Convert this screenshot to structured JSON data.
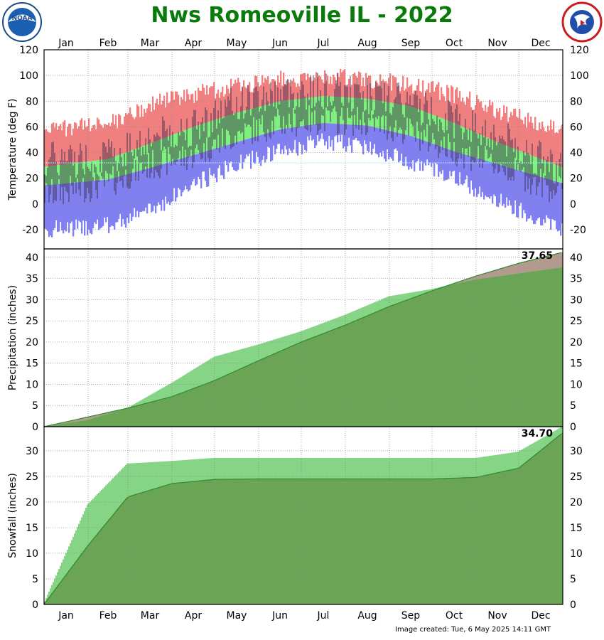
{
  "title": "Nws Romeoville IL - 2022",
  "title_color": "#0a7a0a",
  "footer": "Image created: Tue, 6 May 2025 14:11 GMT",
  "logo_left": {
    "name": "noaa-logo",
    "text": "NOAA"
  },
  "logo_right": {
    "name": "national-weather-service-logo",
    "text": "NATIONAL WEATHER SERVICE"
  },
  "chart_data": [
    {
      "type": "bar",
      "panel": "temperature",
      "ylabel": "Temperature (deg F)",
      "ylim": [
        -35,
        120
      ],
      "yticks": [
        120,
        100,
        80,
        60,
        40,
        20,
        0,
        -20
      ],
      "months": [
        "Jan",
        "Feb",
        "Mar",
        "Apr",
        "May",
        "Jun",
        "Jul",
        "Aug",
        "Sep",
        "Oct",
        "Nov",
        "Dec"
      ],
      "colors": {
        "record": "#f08080",
        "normal": "#7ef07e",
        "low": "#8080f0",
        "observed": "#3a2a4a",
        "mean_line": "#a0f0f0"
      },
      "series": [
        {
          "name": "Normal High",
          "values": [
            31,
            35,
            47,
            60,
            71,
            80,
            84,
            82,
            76,
            63,
            48,
            35
          ]
        },
        {
          "name": "Normal Low",
          "values": [
            16,
            19,
            28,
            38,
            48,
            58,
            63,
            61,
            53,
            41,
            31,
            21
          ]
        },
        {
          "name": "Record High",
          "values": [
            62,
            65,
            80,
            88,
            95,
            100,
            102,
            100,
            96,
            88,
            76,
            66
          ]
        },
        {
          "name": "Record Low",
          "values": [
            -22,
            -20,
            -8,
            12,
            28,
            38,
            46,
            42,
            30,
            18,
            0,
            -15
          ]
        },
        {
          "name": "Observed High",
          "values": [
            35,
            36,
            52,
            60,
            78,
            87,
            88,
            85,
            78,
            66,
            52,
            35
          ]
        },
        {
          "name": "Observed Low",
          "values": [
            10,
            16,
            30,
            38,
            54,
            63,
            66,
            64,
            56,
            42,
            30,
            16
          ]
        }
      ]
    },
    {
      "type": "area",
      "panel": "precipitation",
      "ylabel": "Precipitation (inches)",
      "ylim": [
        0,
        42
      ],
      "yticks": [
        40,
        35,
        30,
        25,
        20,
        15,
        10,
        5,
        0
      ],
      "end_label": "37.65",
      "x": [
        "Jan 1",
        "Feb 1",
        "Mar 1",
        "Apr 1",
        "May 1",
        "Jun 1",
        "Jul 1",
        "Aug 1",
        "Sep 1",
        "Oct 1",
        "Nov 1",
        "Dec 1",
        "Dec 31"
      ],
      "series": [
        {
          "name": "Observed",
          "values": [
            0,
            1.6,
            4.4,
            10.3,
            16.5,
            19.4,
            22.5,
            26.4,
            30.8,
            32.5,
            34.8,
            36.2,
            37.65
          ]
        },
        {
          "name": "Normal",
          "values": [
            0,
            2.3,
            4.4,
            7.1,
            10.9,
            15.6,
            20.0,
            24.0,
            28.4,
            32.1,
            35.6,
            38.6,
            41.2
          ]
        }
      ]
    },
    {
      "type": "area",
      "panel": "snowfall",
      "ylabel": "Snowfall (inches)",
      "ylim": [
        0,
        34.7
      ],
      "yticks": [
        30,
        25,
        20,
        15,
        10,
        5,
        0
      ],
      "end_label": "34.70",
      "x": [
        "Jan 1",
        "Feb 1",
        "Mar 1",
        "Apr 1",
        "May 1",
        "Jun 1",
        "Jul 1",
        "Aug 1",
        "Sep 1",
        "Oct 1",
        "Nov 1",
        "Dec 1",
        "Dec 31"
      ],
      "series": [
        {
          "name": "Observed",
          "values": [
            0,
            19.5,
            27.5,
            28.0,
            28.6,
            28.6,
            28.6,
            28.6,
            28.6,
            28.6,
            28.6,
            29.8,
            34.7
          ]
        },
        {
          "name": "Normal",
          "values": [
            0,
            11.5,
            21.0,
            23.6,
            24.4,
            24.5,
            24.5,
            24.5,
            24.5,
            24.5,
            24.8,
            26.6,
            33.5
          ]
        }
      ]
    }
  ]
}
